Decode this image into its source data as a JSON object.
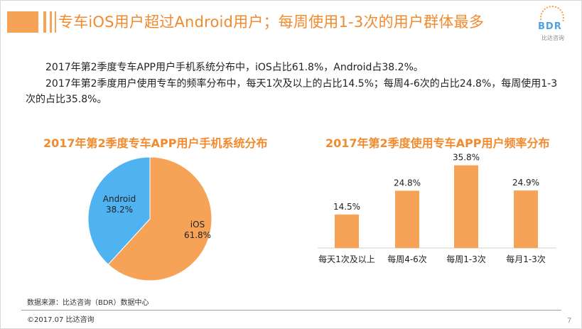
{
  "header": {
    "title": "专车iOS用户超过Android用户；每周使用1-3次的用户群体最多",
    "logo_text": "BDR",
    "logo_sub": "比达咨询"
  },
  "paragraphs": [
    "2017年第2季度专车APP用户手机系统分布中，iOS占比61.8%，Android占38.2%。",
    "2017年第2季度用户使用专车的频率分布中，每天1次及以上的占比14.5%；每周4-6次的占比24.8%，每周使用1-3次的占比35.8%。"
  ],
  "chart_data": [
    {
      "type": "pie",
      "title": "2017年第2季度专车APP用户手机系统分布",
      "slices": [
        {
          "label": "iOS",
          "value": 61.8,
          "value_label": "61.8%",
          "color": "#f7a357"
        },
        {
          "label": "Android",
          "value": 38.2,
          "value_label": "38.2%",
          "color": "#4eb3f0"
        }
      ]
    },
    {
      "type": "bar",
      "title": "2017年第2季度使用专车APP用户频率分布",
      "categories": [
        "每天1次及以上",
        "每周4-6次",
        "每周1-3次",
        "每月1-3次"
      ],
      "values": [
        14.5,
        24.8,
        35.8,
        24.9
      ],
      "value_labels": [
        "14.5%",
        "24.8%",
        "35.8%",
        "24.9%"
      ],
      "color": "#f7a357",
      "ylim": [
        0,
        40
      ],
      "grid": false
    }
  ],
  "footer": {
    "source": "数据来源：比达咨询（BDR）数据中心",
    "copyright": "©2017.07   比达咨询",
    "page_number": "7"
  },
  "colors": {
    "accent": "#f28a2e",
    "bar": "#f7a357",
    "android": "#4eb3f0"
  }
}
